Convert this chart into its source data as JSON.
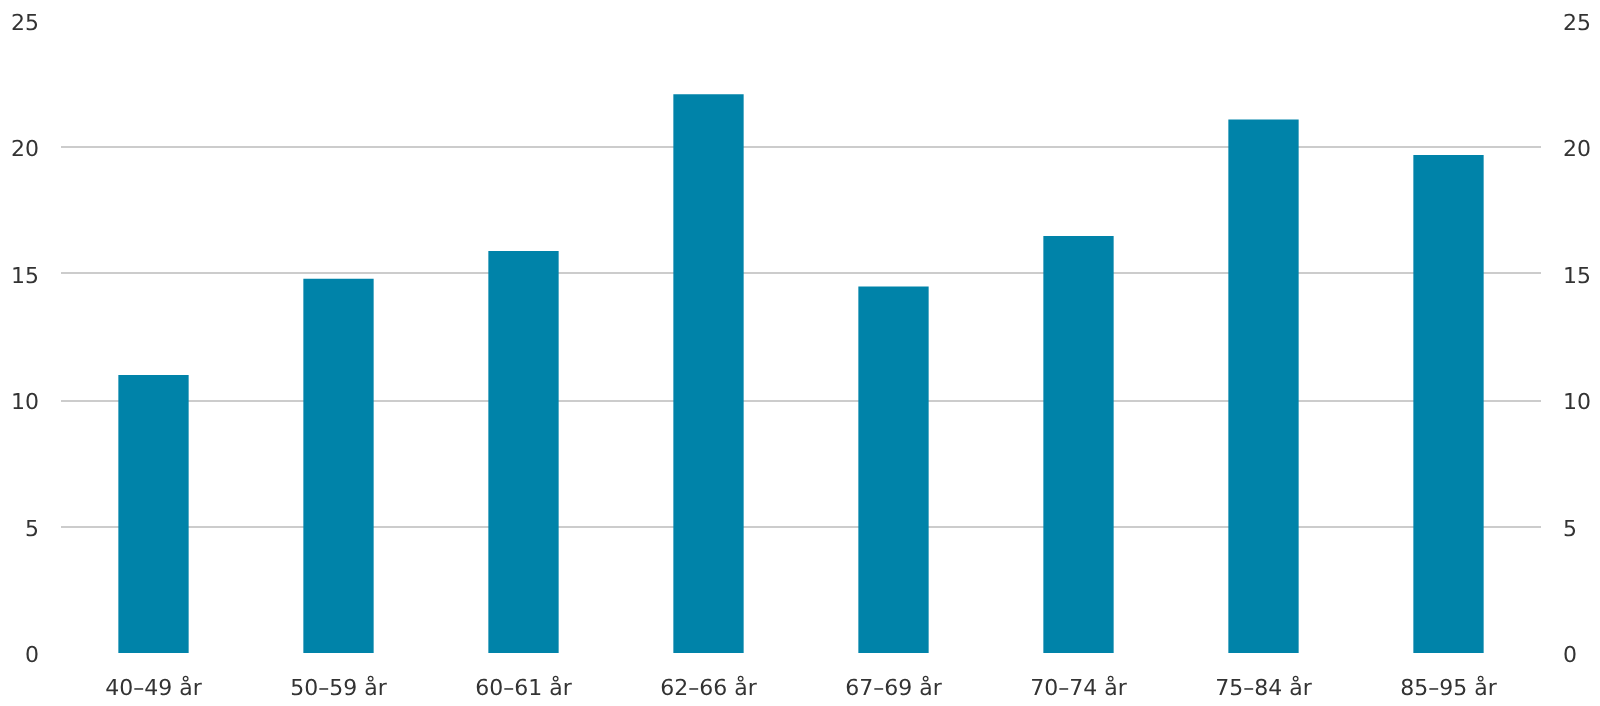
{
  "chart_data": {
    "type": "bar",
    "categories": [
      "40–49 år",
      "50–59 år",
      "60–61 år",
      "62–66 år",
      "67–69 år",
      "70–74 år",
      "75–84 år",
      "85–95 år"
    ],
    "values": [
      11.0,
      14.8,
      15.9,
      22.1,
      14.5,
      16.5,
      21.1,
      19.7
    ],
    "color": "#0083a9",
    "ylim": [
      0,
      25
    ],
    "yticks": [
      0,
      5,
      10,
      15,
      20,
      25
    ],
    "y2lim": [
      0,
      25
    ],
    "y2ticks": [
      0,
      5,
      10,
      15,
      20,
      25
    ],
    "grid": "y"
  }
}
